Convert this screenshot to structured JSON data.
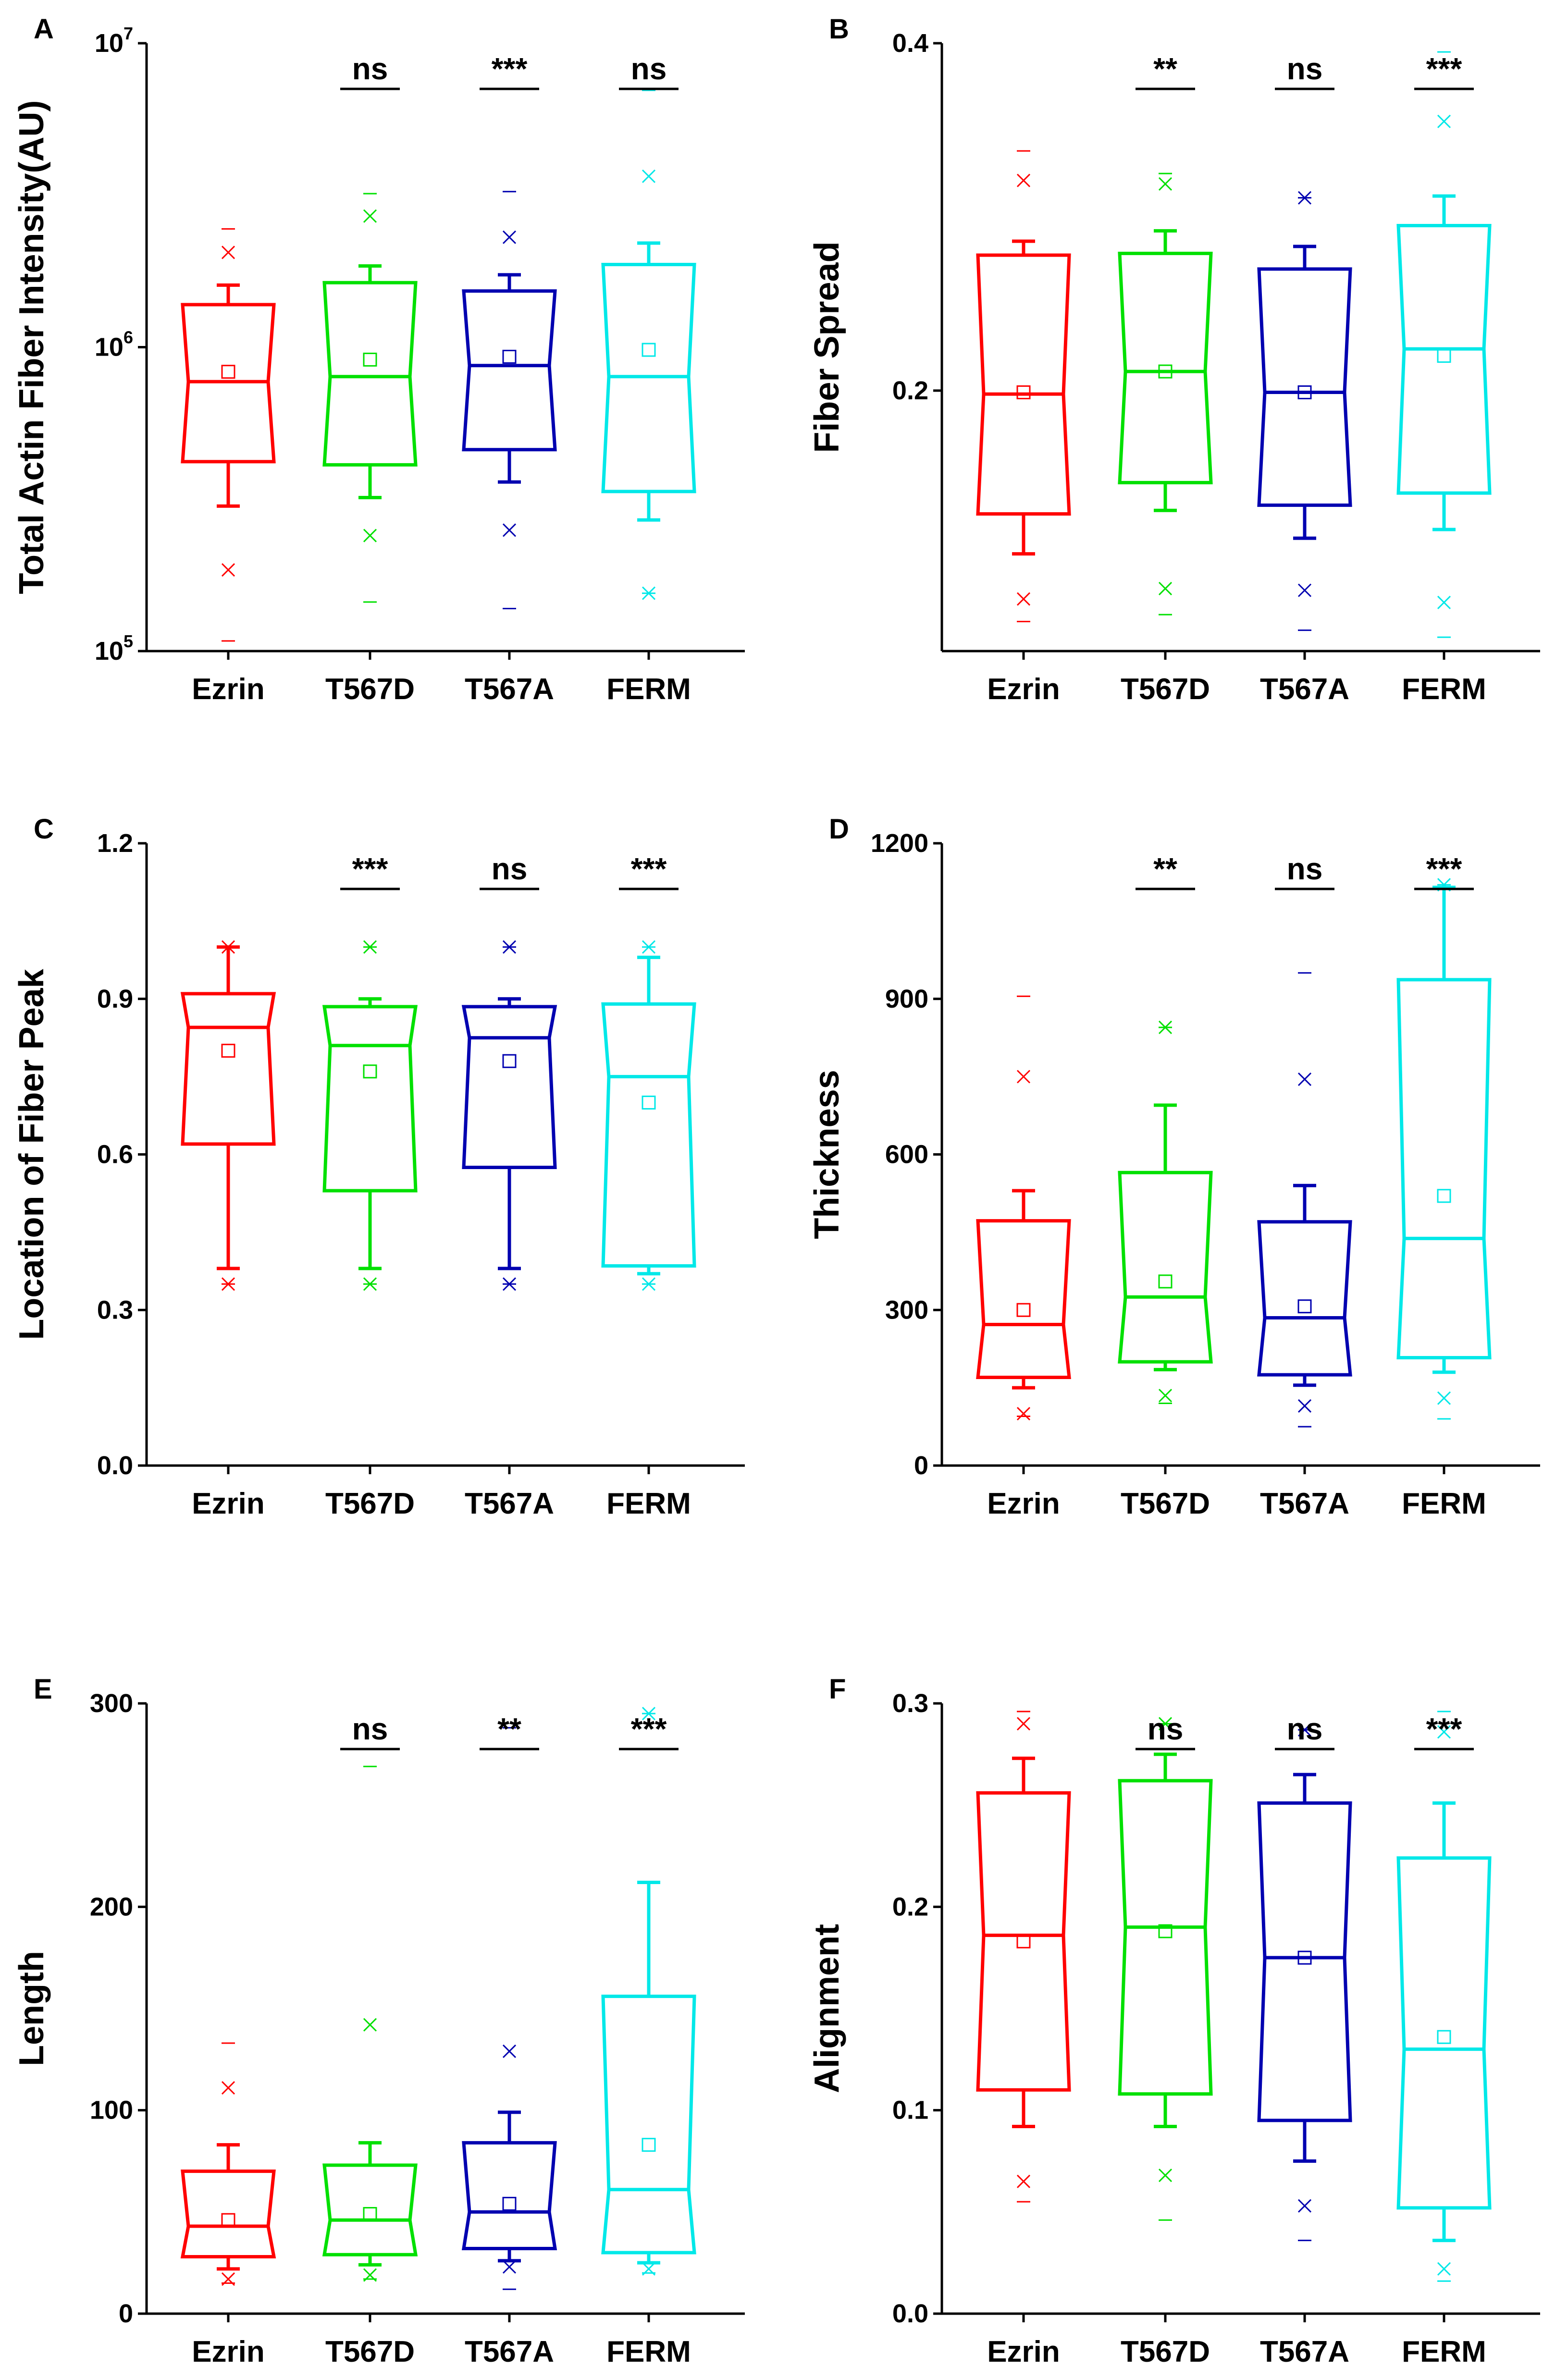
{
  "chart_data": [
    {
      "panel": "A",
      "type": "box",
      "ylabel": "Total Actin Fiber Intensity(AU)",
      "yscale": "log",
      "ylim": [
        100000,
        10000000
      ],
      "yticks": [
        {
          "value": 100000,
          "base": "10",
          "exp": "5"
        },
        {
          "value": 1000000,
          "base": "10",
          "exp": "6"
        },
        {
          "value": 10000000,
          "base": "10",
          "exp": "7"
        }
      ],
      "categories": [
        "Ezrin",
        "T567D",
        "T567A",
        "FERM"
      ],
      "colors": [
        "#ff0000",
        "#00e000",
        "#0000b0",
        "#00e8e8"
      ],
      "significance": [
        "",
        "ns",
        "***",
        "ns"
      ],
      "boxes": [
        {
          "q1": 420000,
          "median": 770000,
          "q3": 1380000,
          "whisker_low": 300000,
          "whisker_high": 1600000,
          "mean": 830000,
          "x_low": 185000,
          "x_high": 2050000,
          "min": 108000,
          "max": 2450000
        },
        {
          "q1": 410000,
          "median": 800000,
          "q3": 1630000,
          "whisker_low": 320000,
          "whisker_high": 1850000,
          "mean": 910000,
          "x_low": 240000,
          "x_high": 2700000,
          "min": 145000,
          "max": 3200000
        },
        {
          "q1": 460000,
          "median": 870000,
          "q3": 1530000,
          "whisker_low": 360000,
          "whisker_high": 1730000,
          "mean": 930000,
          "x_low": 250000,
          "x_high": 2300000,
          "min": 138000,
          "max": 3250000
        },
        {
          "q1": 335000,
          "median": 800000,
          "q3": 1870000,
          "whisker_low": 270000,
          "whisker_high": 2200000,
          "mean": 980000,
          "x_low": 155000,
          "x_high": 3650000,
          "min": 155000,
          "max": 7000000
        }
      ]
    },
    {
      "panel": "B",
      "type": "box",
      "ylabel": "Fiber Spread",
      "yscale": "linear",
      "ylim": [
        0.05,
        0.4
      ],
      "yticks": [
        {
          "value": 0.2,
          "label": "0.2"
        },
        {
          "value": 0.4,
          "label": "0.4"
        }
      ],
      "categories": [
        "Ezrin",
        "T567D",
        "T567A",
        "FERM"
      ],
      "colors": [
        "#ff0000",
        "#00e000",
        "#0000b0",
        "#00e8e8"
      ],
      "significance": [
        "",
        "**",
        "ns",
        "***"
      ],
      "boxes": [
        {
          "q1": 0.129,
          "median": 0.198,
          "q3": 0.278,
          "whisker_low": 0.106,
          "whisker_high": 0.286,
          "mean": 0.199,
          "x_low": 0.08,
          "x_high": 0.321,
          "min": 0.067,
          "max": 0.338
        },
        {
          "q1": 0.147,
          "median": 0.211,
          "q3": 0.279,
          "whisker_low": 0.131,
          "whisker_high": 0.292,
          "mean": 0.211,
          "x_low": 0.086,
          "x_high": 0.319,
          "min": 0.071,
          "max": 0.325
        },
        {
          "q1": 0.134,
          "median": 0.199,
          "q3": 0.27,
          "whisker_low": 0.115,
          "whisker_high": 0.283,
          "mean": 0.199,
          "x_low": 0.085,
          "x_high": 0.311,
          "min": 0.062,
          "max": 0.311
        },
        {
          "q1": 0.141,
          "median": 0.224,
          "q3": 0.295,
          "whisker_low": 0.12,
          "whisker_high": 0.312,
          "mean": 0.22,
          "x_low": 0.078,
          "x_high": 0.355,
          "min": 0.058,
          "max": 0.395
        }
      ]
    },
    {
      "panel": "C",
      "type": "box",
      "ylabel": "Location of Fiber Peak",
      "yscale": "linear",
      "ylim": [
        0.0,
        1.2
      ],
      "yticks": [
        {
          "value": 0.0,
          "label": "0.0"
        },
        {
          "value": 0.3,
          "label": "0.3"
        },
        {
          "value": 0.6,
          "label": "0.6"
        },
        {
          "value": 0.9,
          "label": "0.9"
        },
        {
          "value": 1.2,
          "label": "1.2"
        }
      ],
      "categories": [
        "Ezrin",
        "T567D",
        "T567A",
        "FERM"
      ],
      "colors": [
        "#ff0000",
        "#00e000",
        "#0000b0",
        "#00e8e8"
      ],
      "significance": [
        "",
        "***",
        "ns",
        "***"
      ],
      "boxes": [
        {
          "q1": 0.62,
          "median": 0.845,
          "q3": 0.91,
          "whisker_low": 0.38,
          "whisker_high": 1.0,
          "mean": 0.8,
          "x_low": 0.35,
          "x_high": 1.0,
          "min": 0.35,
          "max": 1.0
        },
        {
          "q1": 0.53,
          "median": 0.81,
          "q3": 0.885,
          "whisker_low": 0.38,
          "whisker_high": 0.9,
          "mean": 0.76,
          "x_low": 0.35,
          "x_high": 1.0,
          "min": 0.35,
          "max": 1.0
        },
        {
          "q1": 0.575,
          "median": 0.825,
          "q3": 0.885,
          "whisker_low": 0.38,
          "whisker_high": 0.9,
          "mean": 0.78,
          "x_low": 0.35,
          "x_high": 1.0,
          "min": 0.35,
          "max": 1.0
        },
        {
          "q1": 0.385,
          "median": 0.75,
          "q3": 0.89,
          "whisker_low": 0.37,
          "whisker_high": 0.98,
          "mean": 0.7,
          "x_low": 0.35,
          "x_high": 1.0,
          "min": 0.35,
          "max": 1.0
        }
      ]
    },
    {
      "panel": "D",
      "type": "box",
      "ylabel": "Thickness",
      "yscale": "linear",
      "ylim": [
        0,
        1200
      ],
      "yticks": [
        {
          "value": 0,
          "label": "0"
        },
        {
          "value": 300,
          "label": "300"
        },
        {
          "value": 600,
          "label": "600"
        },
        {
          "value": 900,
          "label": "900"
        },
        {
          "value": 1200,
          "label": "1200"
        }
      ],
      "categories": [
        "Ezrin",
        "T567D",
        "T567A",
        "FERM"
      ],
      "colors": [
        "#ff0000",
        "#00e000",
        "#0000b0",
        "#00e8e8"
      ],
      "significance": [
        "",
        "**",
        "ns",
        "***"
      ],
      "boxes": [
        {
          "q1": 170,
          "median": 272,
          "q3": 472,
          "whisker_low": 150,
          "whisker_high": 530,
          "mean": 300,
          "x_low": 100,
          "x_high": 750,
          "min": 95,
          "max": 905
        },
        {
          "q1": 200,
          "median": 325,
          "q3": 565,
          "whisker_low": 185,
          "whisker_high": 695,
          "mean": 355,
          "x_low": 135,
          "x_high": 845,
          "min": 120,
          "max": 845
        },
        {
          "q1": 175,
          "median": 285,
          "q3": 470,
          "whisker_low": 155,
          "whisker_high": 540,
          "mean": 307,
          "x_low": 115,
          "x_high": 745,
          "min": 75,
          "max": 950
        },
        {
          "q1": 208,
          "median": 438,
          "q3": 937,
          "whisker_low": 180,
          "whisker_high": 1115,
          "mean": 520,
          "x_low": 130,
          "x_high": 1120,
          "min": 90,
          "max": 1120
        }
      ]
    },
    {
      "panel": "E",
      "type": "box",
      "ylabel": "Length",
      "yscale": "linear",
      "ylim": [
        0,
        300
      ],
      "yticks": [
        {
          "value": 0,
          "label": "0"
        },
        {
          "value": 100,
          "label": "100"
        },
        {
          "value": 200,
          "label": "200"
        },
        {
          "value": 300,
          "label": "300"
        }
      ],
      "categories": [
        "Ezrin",
        "T567D",
        "T567A",
        "FERM"
      ],
      "colors": [
        "#ff0000",
        "#00e000",
        "#0000b0",
        "#00e8e8"
      ],
      "significance": [
        "",
        "ns",
        "**",
        "***"
      ],
      "boxes": [
        {
          "q1": 28,
          "median": 43,
          "q3": 70,
          "whisker_low": 22,
          "whisker_high": 83,
          "mean": 46,
          "x_low": 17,
          "x_high": 111,
          "min": 15,
          "max": 133
        },
        {
          "q1": 29,
          "median": 46,
          "q3": 73,
          "whisker_low": 24,
          "whisker_high": 84,
          "mean": 49,
          "x_low": 19,
          "x_high": 142,
          "min": 17,
          "max": 269
        },
        {
          "q1": 32,
          "median": 50,
          "q3": 84,
          "whisker_low": 26,
          "whisker_high": 99,
          "mean": 54,
          "x_low": 23,
          "x_high": 129,
          "min": 12,
          "max": 288
        },
        {
          "q1": 30,
          "median": 61,
          "q3": 156,
          "whisker_low": 25,
          "whisker_high": 212,
          "mean": 83,
          "x_low": 22,
          "x_high": 295,
          "min": 20,
          "max": 295
        }
      ]
    },
    {
      "panel": "F",
      "type": "box",
      "ylabel": "Alignment",
      "yscale": "linear",
      "ylim": [
        0.0,
        0.3
      ],
      "yticks": [
        {
          "value": 0.0,
          "label": "0.0"
        },
        {
          "value": 0.1,
          "label": "0.1"
        },
        {
          "value": 0.2,
          "label": "0.2"
        },
        {
          "value": 0.3,
          "label": "0.3"
        }
      ],
      "categories": [
        "Ezrin",
        "T567D",
        "T567A",
        "FERM"
      ],
      "colors": [
        "#ff0000",
        "#00e000",
        "#0000b0",
        "#00e8e8"
      ],
      "significance": [
        "",
        "ns",
        "ns",
        "***"
      ],
      "boxes": [
        {
          "q1": 0.11,
          "median": 0.186,
          "q3": 0.256,
          "whisker_low": 0.092,
          "whisker_high": 0.273,
          "mean": 0.183,
          "x_low": 0.065,
          "x_high": 0.29,
          "min": 0.055,
          "max": 0.296
        },
        {
          "q1": 0.108,
          "median": 0.19,
          "q3": 0.262,
          "whisker_low": 0.092,
          "whisker_high": 0.275,
          "mean": 0.188,
          "x_low": 0.068,
          "x_high": 0.29,
          "min": 0.046,
          "max": 0.29
        },
        {
          "q1": 0.095,
          "median": 0.175,
          "q3": 0.251,
          "whisker_low": 0.075,
          "whisker_high": 0.265,
          "mean": 0.175,
          "x_low": 0.053,
          "x_high": 0.287,
          "min": 0.036,
          "max": 0.287
        },
        {
          "q1": 0.052,
          "median": 0.13,
          "q3": 0.224,
          "whisker_low": 0.036,
          "whisker_high": 0.251,
          "mean": 0.136,
          "x_low": 0.022,
          "x_high": 0.286,
          "min": 0.016,
          "max": 0.296
        }
      ]
    }
  ]
}
